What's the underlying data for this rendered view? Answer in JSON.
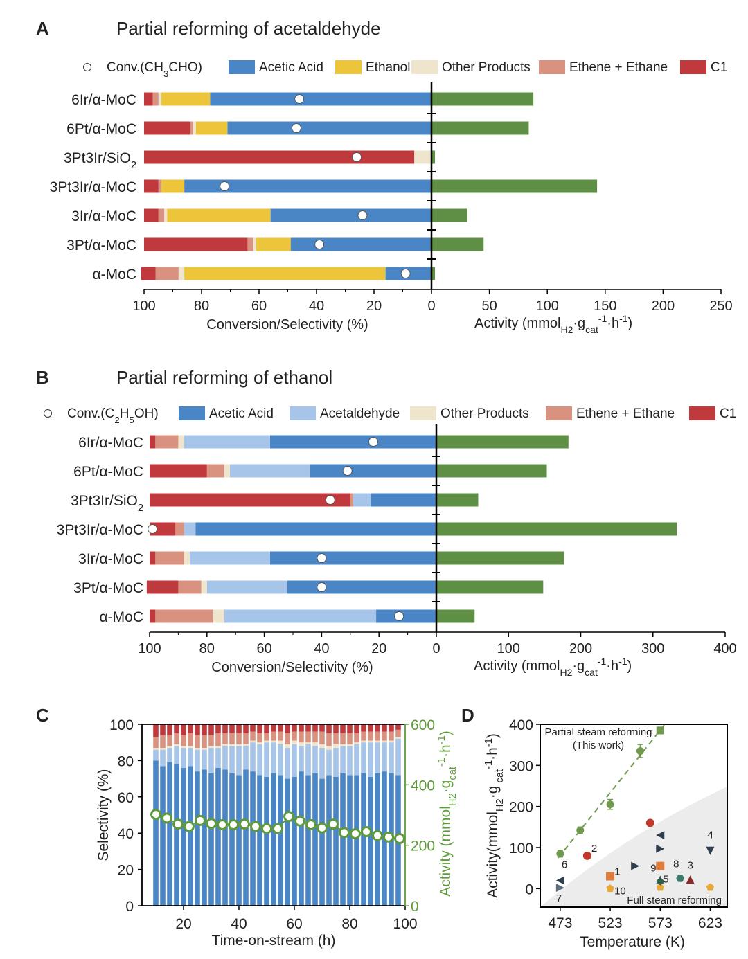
{
  "colors": {
    "acetic": "#4a85c6",
    "ethanol_yellow": "#ecc53b",
    "acetaldehyde": "#a6c5e8",
    "other": "#efe4cc",
    "ethene": "#d9927f",
    "c1": "#c0393d",
    "activity": "#5f8f44",
    "text": "#222222",
    "panelD_line": "#6f9a4e"
  },
  "chart_data": [
    {
      "panel": "A",
      "panel_label": "A",
      "type": "bar",
      "title": "Partial reforming of acetaldehyde",
      "legend": [
        "Conv.(CH₃CHO)",
        "Acetic Acid",
        "Ethanol",
        "Other Products",
        "Ethene + Ethane",
        "C1"
      ],
      "conv_legend": {
        "prefix": "Conv.(CH",
        "sub": "3",
        "suffix": "CHO)"
      },
      "categories": [
        "6Ir/α-MoC",
        "6Pt/α-MoC",
        "3Pt3Ir/SiO₂",
        "3Pt3Ir/α-MoC",
        "3Ir/α-MoC",
        "3Pt/α-MoC",
        "α-MoC"
      ],
      "left_axis": {
        "label": "Conversion/Selectivity (%)",
        "ticks": [
          "100",
          "80",
          "60",
          "40",
          "20",
          "0"
        ],
        "range": [
          100,
          0
        ]
      },
      "right_axis": {
        "label_prefix": "Activity (mmol",
        "label_sub": "H2",
        "label_mid": "·g",
        "label_sub2": "cat",
        "label_sup": "-1",
        "label_end": "·h",
        "label_sup2": "-1",
        "label_close": ")",
        "ticks": [
          "50",
          "100",
          "150",
          "200",
          "250"
        ],
        "range": [
          0,
          250
        ]
      },
      "series_order": [
        "Acetic Acid",
        "Ethanol",
        "Other Products",
        "Ethene + Ethane",
        "C1"
      ],
      "selectivity": [
        [
          77,
          17,
          1,
          2,
          3
        ],
        [
          71,
          11,
          1,
          1,
          16
        ],
        [
          0,
          0,
          6,
          0,
          94
        ],
        [
          86,
          8,
          0,
          1,
          5
        ],
        [
          56,
          36,
          1,
          2,
          5
        ],
        [
          49,
          12,
          1,
          2,
          36
        ],
        [
          16,
          70,
          2,
          8,
          5
        ]
      ],
      "conversion": [
        46,
        47,
        26,
        72,
        24,
        39,
        9
      ],
      "activity": [
        88,
        84,
        3,
        143,
        31,
        45,
        3
      ]
    },
    {
      "panel": "B",
      "panel_label": "B",
      "type": "bar",
      "title": "Partial reforming of ethanol",
      "legend": [
        "Conv.(C₂H₅OH)",
        "Acetic Acid",
        "Acetaldehyde",
        "Other Products",
        "Ethene + Ethane",
        "C1"
      ],
      "categories": [
        "6Ir/α-MoC",
        "6Pt/α-MoC",
        "3Pt3Ir/SiO₂",
        "3Pt3Ir/α-MoC",
        "3Ir/α-MoC",
        "3Pt/α-MoC",
        "α-MoC"
      ],
      "left_axis": {
        "label": "Conversion/Selectivity (%)",
        "ticks": [
          "100",
          "80",
          "60",
          "40",
          "20",
          "0"
        ],
        "range": [
          100,
          0
        ]
      },
      "right_axis": {
        "ticks": [
          "100",
          "200",
          "300",
          "400"
        ],
        "range": [
          0,
          400
        ]
      },
      "series_order": [
        "Acetic Acid",
        "Acetaldehyde",
        "Other Products",
        "Ethene + Ethane",
        "C1"
      ],
      "selectivity": [
        [
          58,
          30,
          2,
          8,
          2
        ],
        [
          44,
          28,
          2,
          6,
          20
        ],
        [
          23,
          6,
          0,
          1,
          70
        ],
        [
          84,
          4,
          0,
          3,
          9
        ],
        [
          58,
          28,
          2,
          10,
          2
        ],
        [
          52,
          28,
          2,
          8,
          11
        ],
        [
          21,
          53,
          4,
          20,
          2
        ]
      ],
      "conversion": [
        22,
        31,
        37,
        99,
        40,
        40,
        13
      ],
      "activity": [
        183,
        153,
        58,
        333,
        177,
        148,
        53
      ]
    },
    {
      "panel": "C",
      "panel_label": "C",
      "type": "bar",
      "xlabel": "Time-on-stream (h)",
      "ylabel": "Selectivity (%)",
      "y2label": "Activity (mmol_H2·g_cat^-1·h^-1)",
      "x_ticks": [
        "20",
        "40",
        "60",
        "80",
        "100"
      ],
      "y_ticks": [
        "0",
        "20",
        "40",
        "60",
        "80",
        "100"
      ],
      "y2_ticks": [
        "0",
        "200",
        "400",
        "600"
      ],
      "xlim": [
        5,
        100
      ],
      "ylim": [
        0,
        100
      ],
      "y2lim": [
        0,
        600
      ],
      "x": [
        10,
        12.5,
        15,
        17.5,
        20,
        22.5,
        25,
        27.5,
        30,
        32.5,
        35,
        37.5,
        40,
        42.5,
        45,
        47.5,
        50,
        52.5,
        55,
        57.5,
        60,
        62.5,
        65,
        67.5,
        70,
        72.5,
        75,
        77.5,
        80,
        82.5,
        85,
        87.5,
        90,
        92.5,
        95,
        97.5
      ],
      "acetic": [
        80,
        77,
        79,
        78,
        76,
        77,
        74,
        75,
        73,
        76,
        75,
        73,
        72,
        75,
        74,
        72,
        71,
        73,
        72,
        70,
        71,
        74,
        72,
        73,
        70,
        72,
        71,
        73,
        72,
        72,
        73,
        71,
        73,
        74,
        73,
        72
      ],
      "acetaldehyde": [
        6,
        9,
        8,
        10,
        11,
        10,
        12,
        11,
        14,
        11,
        13,
        15,
        16,
        13,
        16,
        17,
        19,
        17,
        17,
        17,
        18,
        14,
        17,
        15,
        17,
        14,
        16,
        15,
        16,
        17,
        17,
        19,
        17,
        16,
        17,
        20
      ],
      "other": [
        1,
        1,
        1,
        1,
        1,
        1,
        1,
        1,
        1,
        1,
        1,
        1,
        1,
        1,
        1,
        1,
        1,
        1,
        2,
        2,
        2,
        2,
        1,
        2,
        2,
        2,
        2,
        1,
        1,
        1,
        1,
        1,
        1,
        1,
        1,
        1
      ],
      "ethene": [
        6,
        7,
        6,
        6,
        6,
        7,
        7,
        7,
        6,
        7,
        6,
        6,
        6,
        6,
        5,
        5,
        4,
        5,
        5,
        6,
        5,
        6,
        6,
        6,
        7,
        7,
        6,
        6,
        6,
        5,
        5,
        5,
        5,
        5,
        5,
        4
      ],
      "c1": [
        7,
        6,
        6,
        5,
        6,
        5,
        6,
        6,
        6,
        5,
        5,
        5,
        5,
        5,
        4,
        5,
        5,
        4,
        4,
        5,
        4,
        4,
        4,
        4,
        4,
        5,
        5,
        5,
        5,
        5,
        4,
        4,
        4,
        4,
        4,
        3
      ],
      "activity_x": [
        10,
        14,
        18,
        22,
        26,
        30,
        34,
        38,
        42,
        46,
        50,
        54,
        58,
        62,
        66,
        70,
        74,
        78,
        82,
        86,
        90,
        94,
        98
      ],
      "activity": [
        302,
        290,
        270,
        262,
        282,
        272,
        268,
        268,
        270,
        262,
        255,
        255,
        295,
        280,
        268,
        257,
        270,
        242,
        238,
        245,
        232,
        227,
        222
      ]
    },
    {
      "panel": "D",
      "panel_label": "D",
      "type": "scatter",
      "xlabel": "Temperature (K)",
      "ylabel": "Activity(mmol_H2·g_cat^-1·h^-1)",
      "x_ticks": [
        "473",
        "523",
        "573",
        "623"
      ],
      "y_ticks": [
        "0",
        "100",
        "200",
        "300",
        "400"
      ],
      "xlim": [
        453,
        640
      ],
      "ylim": [
        -45,
        400
      ],
      "annotation_top": "Partial steam reforming",
      "annotation_top2": "(This work)",
      "annotation_bottom": "Full steam reforming",
      "this_work": {
        "x": [
          473,
          493,
          523,
          553,
          573
        ],
        "y": [
          85,
          142,
          205,
          335,
          385
        ],
        "err": [
          8,
          8,
          12,
          16,
          8
        ]
      },
      "literature": [
        {
          "label": "2",
          "x": 500,
          "y": 80,
          "shape": "circle",
          "color": "#c0392b"
        },
        {
          "label": "",
          "x": 563,
          "y": 160,
          "shape": "circle",
          "color": "#c0392b"
        },
        {
          "label": "1",
          "x": 523,
          "y": 30,
          "shape": "square",
          "color": "#e07b39"
        },
        {
          "label": "",
          "x": 573,
          "y": 55,
          "shape": "square",
          "color": "#e07b39"
        },
        {
          "label": "10",
          "x": 523,
          "y": 0,
          "shape": "pentagon",
          "color": "#e8a83a"
        },
        {
          "label": "",
          "x": 573,
          "y": 3,
          "shape": "pentagon",
          "color": "#e8a83a"
        },
        {
          "label": "",
          "x": 623,
          "y": 3,
          "shape": "pentagon",
          "color": "#e8a83a"
        },
        {
          "label": "6",
          "x": 473,
          "y": 20,
          "shape": "tri-left",
          "color": "#2f3e4f"
        },
        {
          "label": "",
          "x": 573,
          "y": 130,
          "shape": "tri-left",
          "color": "#2f3e4f"
        },
        {
          "label": "7",
          "x": 473,
          "y": 2,
          "shape": "tri-right",
          "color": "#5e6e7e"
        },
        {
          "label": "",
          "x": 548,
          "y": 55,
          "shape": "tri-right",
          "color": "#2f3e4f"
        },
        {
          "label": "",
          "x": 573,
          "y": 97,
          "shape": "tri-right",
          "color": "#2f3e4f"
        },
        {
          "label": "9",
          "x": 573,
          "y": 22,
          "shape": "tri-up",
          "color": "#5e6e7e"
        },
        {
          "label": "5",
          "x": 573,
          "y": 18,
          "shape": "diamond",
          "color": "#2f5e4a"
        },
        {
          "label": "8",
          "x": 593,
          "y": 25,
          "shape": "hexagon",
          "color": "#3a7a6a"
        },
        {
          "label": "3",
          "x": 603,
          "y": 22,
          "shape": "tri-up",
          "color": "#8a2b2b"
        },
        {
          "label": "4",
          "x": 623,
          "y": 92,
          "shape": "tri-down",
          "color": "#2f3e4f"
        }
      ]
    }
  ]
}
